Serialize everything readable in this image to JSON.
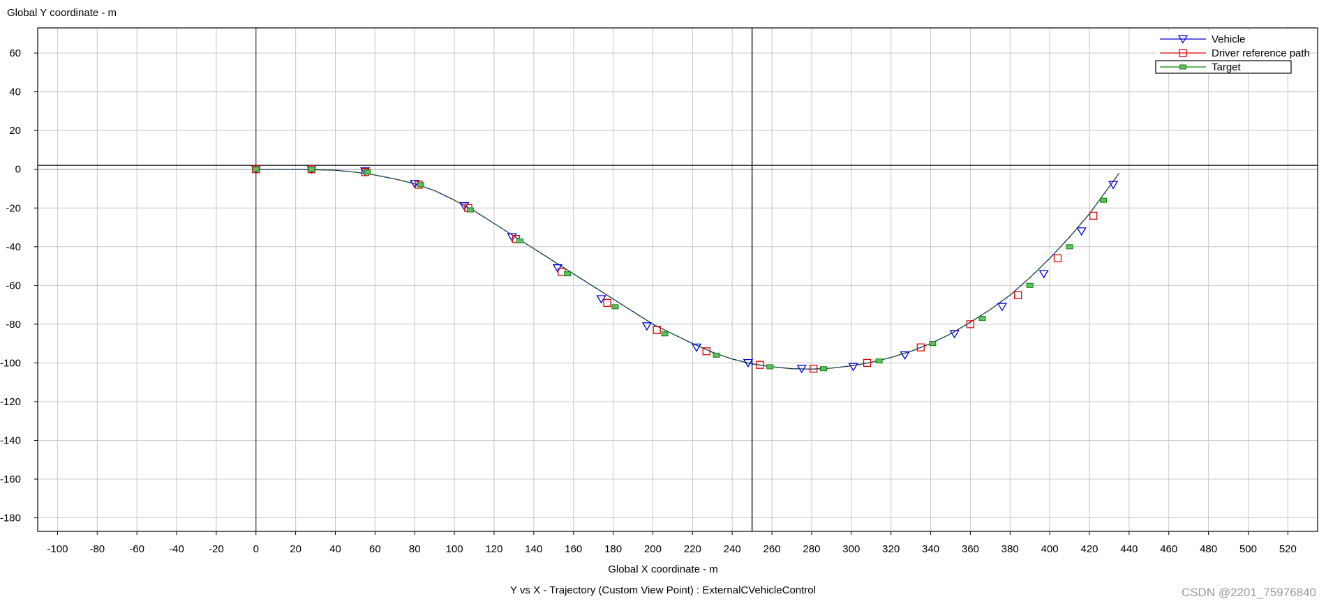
{
  "chart_data": {
    "type": "line",
    "title": "Y vs X - Trajectory (Custom View Point) : ExternalCVehicleControl",
    "xlabel": "Global X coordinate - m",
    "ylabel": "Global Y coordinate - m",
    "xlim": [
      -110,
      535
    ],
    "ylim": [
      -187,
      73
    ],
    "xticks": [
      -100,
      -80,
      -60,
      -40,
      -20,
      0,
      20,
      40,
      60,
      80,
      100,
      120,
      140,
      160,
      180,
      200,
      220,
      240,
      260,
      280,
      300,
      320,
      340,
      360,
      380,
      400,
      420,
      440,
      460,
      480,
      500,
      520
    ],
    "yticks": [
      60,
      40,
      20,
      0,
      -20,
      -40,
      -60,
      -80,
      -100,
      -120,
      -140,
      -160,
      -180
    ],
    "grid": true,
    "legend_position": "top-right",
    "crosshair": {
      "x": 250,
      "y": 2
    },
    "path_x": [
      0,
      20,
      40,
      50,
      60,
      70,
      80,
      90,
      100,
      110,
      120,
      130,
      140,
      150,
      160,
      170,
      180,
      190,
      200,
      210,
      220,
      230,
      240,
      250,
      260,
      270,
      280,
      290,
      300,
      310,
      320,
      330,
      340,
      350,
      360,
      370,
      380,
      390,
      400,
      410,
      420,
      430,
      435
    ],
    "path_y": [
      0,
      0,
      -0.5,
      -1.5,
      -3,
      -5,
      -7.5,
      -11,
      -16,
      -21.5,
      -28,
      -34.5,
      -41,
      -47.5,
      -54,
      -60.5,
      -67,
      -73.5,
      -80,
      -85,
      -90,
      -94.5,
      -98,
      -100.5,
      -102,
      -103,
      -103.2,
      -102.7,
      -101.5,
      -99.7,
      -97.2,
      -94,
      -90,
      -85,
      -79,
      -72.5,
      -65,
      -56,
      -46,
      -35,
      -23,
      -9,
      -2
    ],
    "series": [
      {
        "name": "Vehicle",
        "color": "#0000cc",
        "marker": "triangle-down",
        "marker_x": [
          0,
          28,
          55,
          80,
          105,
          129,
          152,
          174,
          197,
          222,
          248,
          275,
          301,
          327,
          352,
          376,
          397,
          416,
          432
        ],
        "marker_y": [
          0,
          0,
          -1,
          -7.5,
          -19,
          -35,
          -51,
          -67,
          -81,
          -92,
          -100,
          -103,
          -102,
          -96,
          -85,
          -71,
          -54,
          -32,
          -8
        ]
      },
      {
        "name": "Driver reference path",
        "color": "#dd0000",
        "marker": "square",
        "marker_x": [
          0,
          28,
          55,
          82,
          107,
          131,
          154,
          177,
          202,
          227,
          254,
          281,
          308,
          335,
          360,
          384,
          404,
          422
        ],
        "marker_y": [
          0,
          0,
          -1.5,
          -8,
          -20,
          -36,
          -53,
          -69,
          -83,
          -94,
          -101,
          -103,
          -100,
          -92,
          -80,
          -65,
          -46,
          -24
        ]
      },
      {
        "name": "Target",
        "color": "#008800",
        "marker": "square-small",
        "marker_x": [
          0,
          28,
          56,
          83,
          108,
          133,
          157,
          181,
          206,
          232,
          259,
          286,
          314,
          341,
          366,
          390,
          410,
          427
        ],
        "marker_y": [
          0,
          0,
          -1.5,
          -8,
          -21,
          -37,
          -54,
          -71,
          -85,
          -96,
          -102,
          -103,
          -99,
          -90,
          -77,
          -60,
          -40,
          -16
        ]
      }
    ]
  },
  "watermark": "CSDN @2201_75976840"
}
